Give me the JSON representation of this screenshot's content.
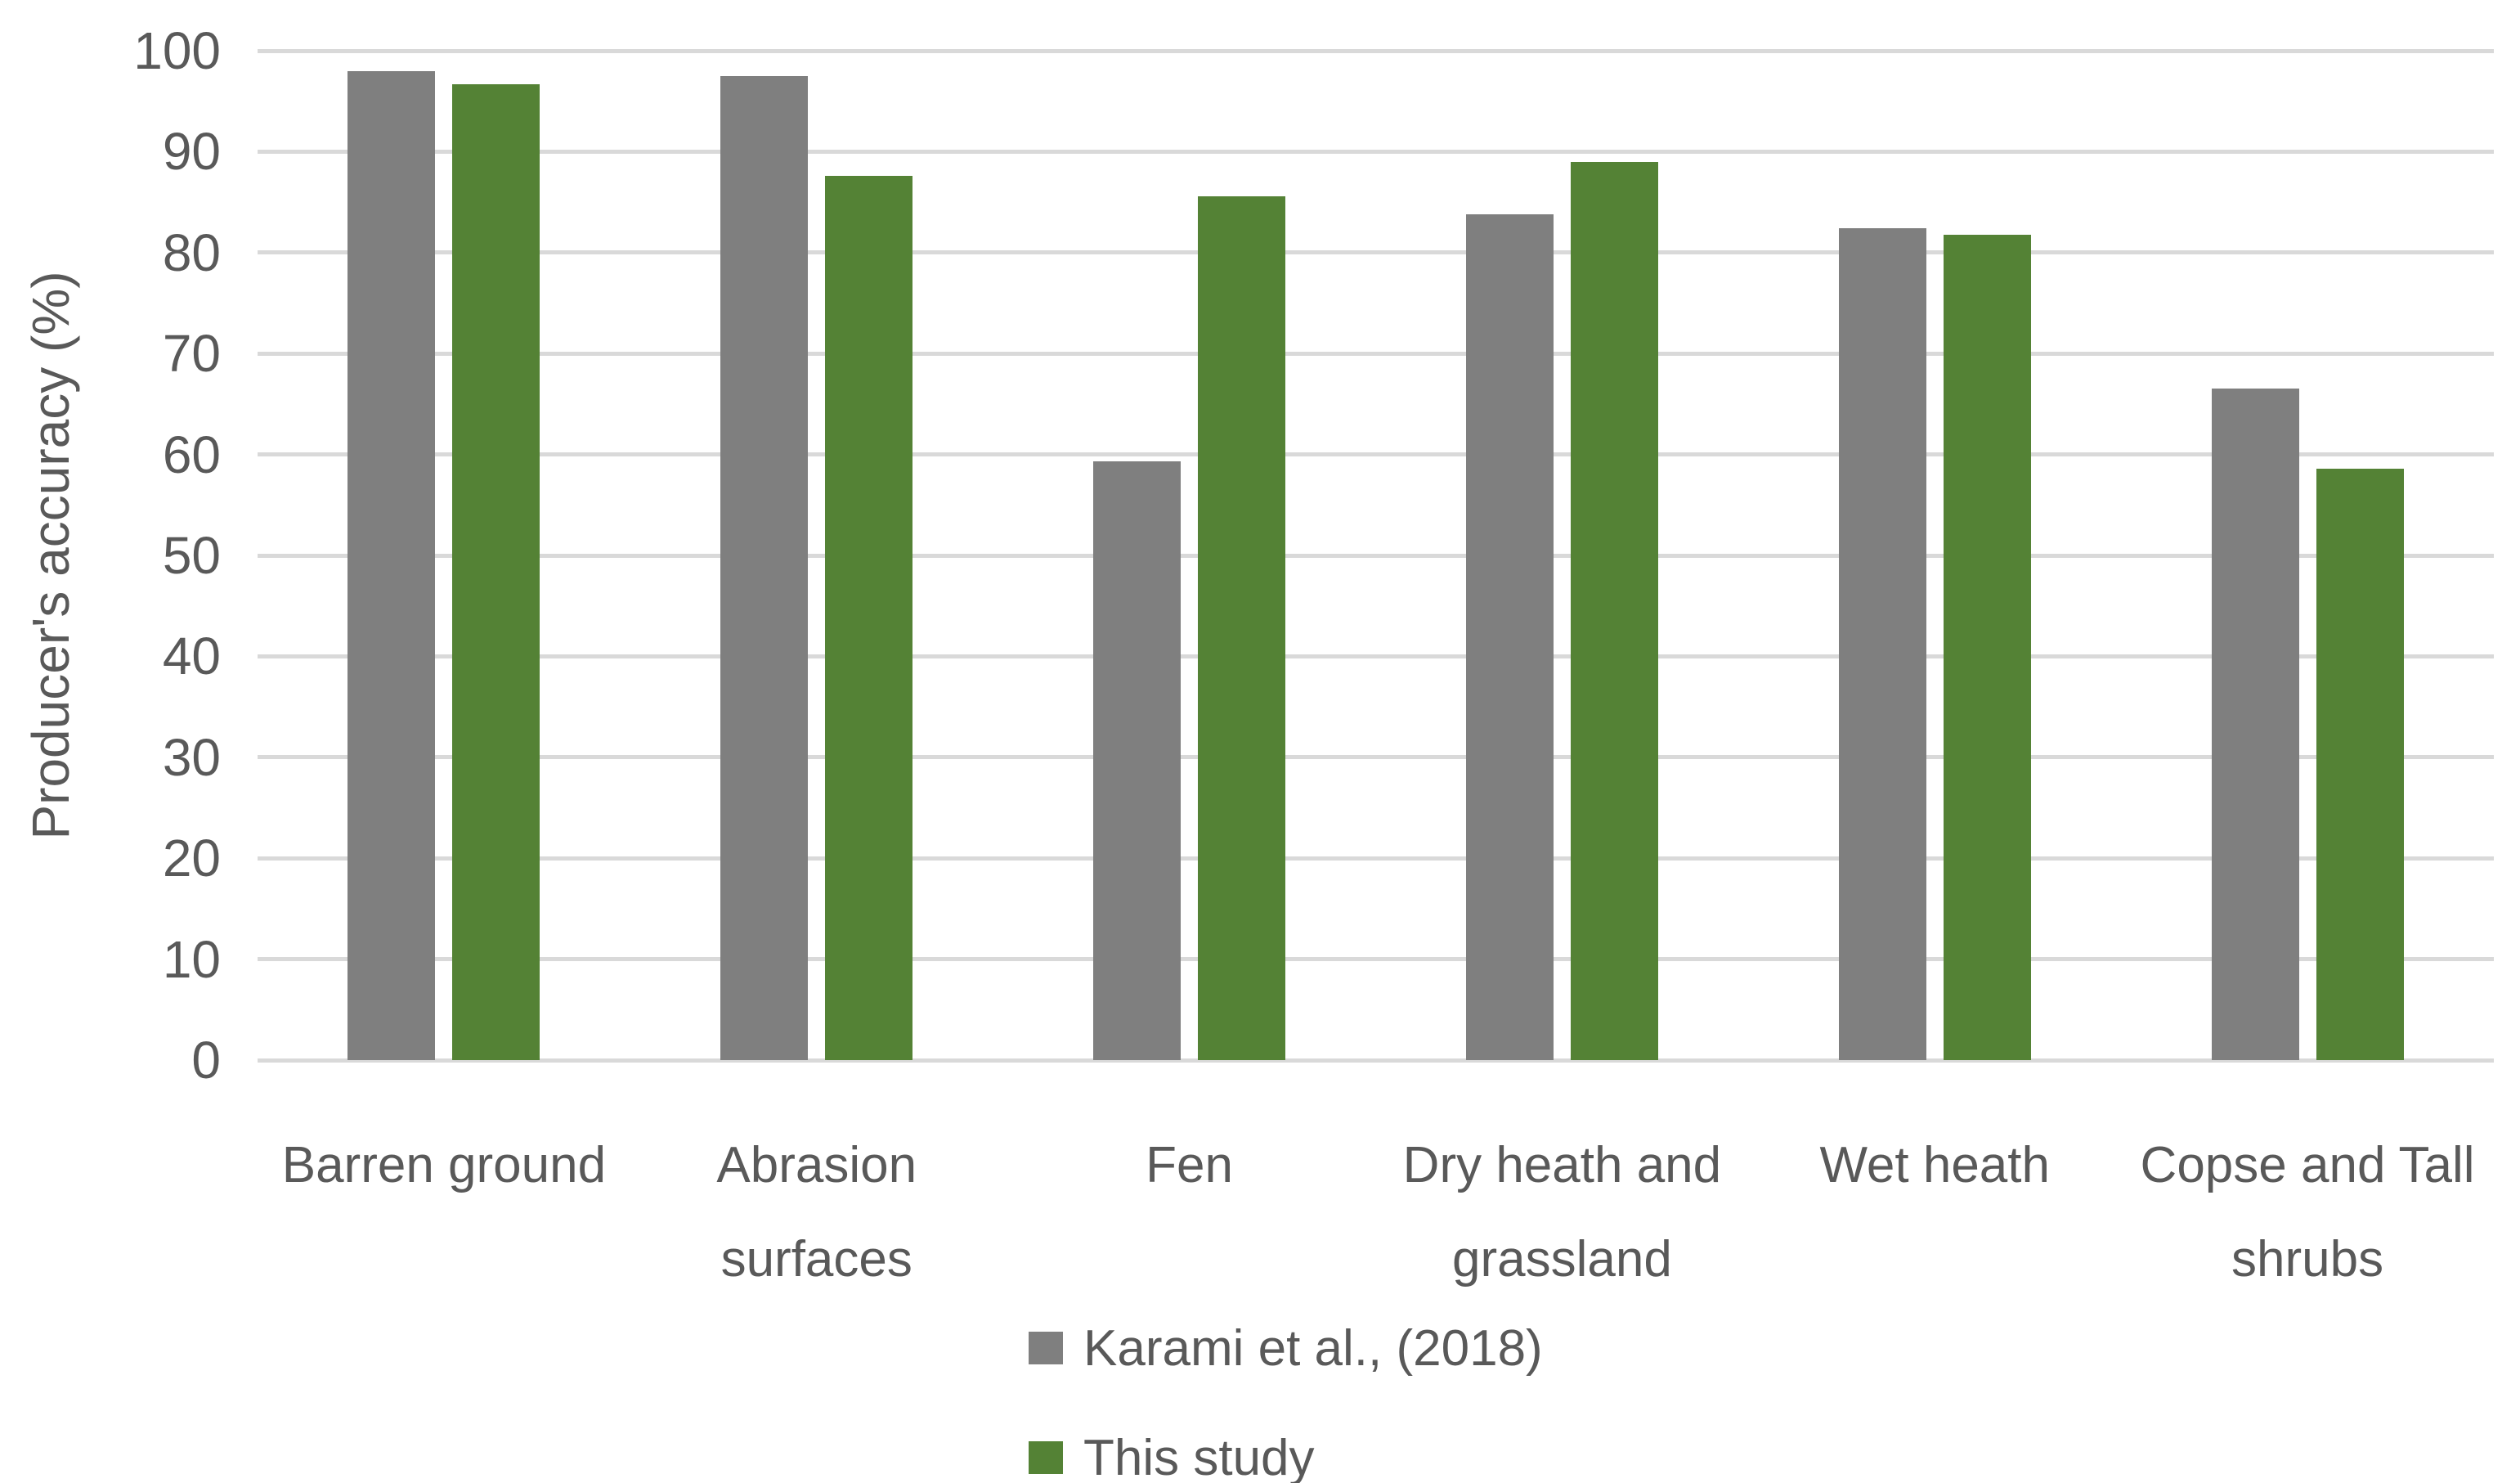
{
  "chart_data": {
    "type": "bar",
    "title": "",
    "ylabel": "Producer's accuracy (%)",
    "xlabel": "",
    "ylim": [
      0,
      100
    ],
    "yticks": [
      0,
      10,
      20,
      30,
      40,
      50,
      60,
      70,
      80,
      90,
      100
    ],
    "grid": true,
    "legend_position": "bottom",
    "categories": [
      "Barren ground",
      "Abrasion surfaces",
      "Fen",
      "Dry heath and grassland",
      "Wet heath",
      "Copse and Tall shrubs"
    ],
    "series": [
      {
        "name": "Karami et al., (2018)",
        "color": "#7F7F7F",
        "values": [
          98.0,
          97.5,
          59.3,
          83.8,
          82.4,
          66.5
        ]
      },
      {
        "name": "This study",
        "color": "#548235",
        "values": [
          96.7,
          87.6,
          85.6,
          89.0,
          81.8,
          58.6
        ]
      }
    ],
    "colors": {
      "gridline": "#D9D9D9",
      "text": "#595959",
      "background": "#FFFFFF"
    }
  }
}
